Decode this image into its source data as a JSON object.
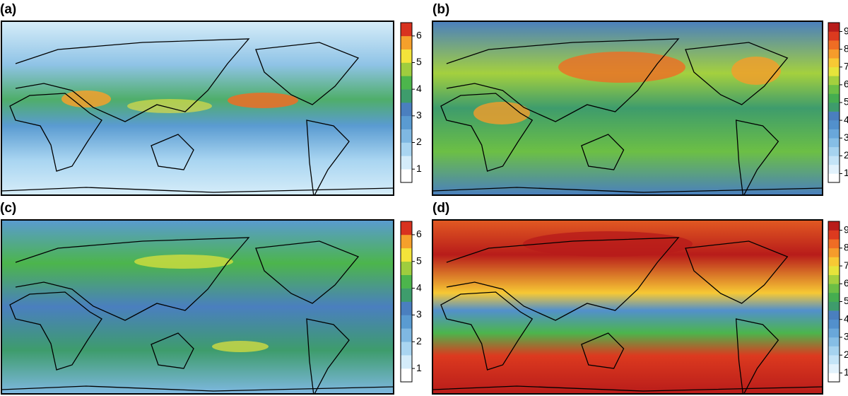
{
  "panels": [
    {
      "label": "(a)",
      "colorbar": {
        "lim": [
          0.5,
          6.5
        ],
        "ticks": [
          1,
          2,
          3,
          4,
          5,
          6
        ],
        "colors": [
          "#ffffff",
          "#d4ecfa",
          "#a9d5f1",
          "#7fb8e2",
          "#5a9bd1",
          "#4a7fbf",
          "#3e9c6c",
          "#4cb54c",
          "#9fcd3e",
          "#f4e43a",
          "#f5a02b",
          "#d8321f"
        ]
      }
    },
    {
      "label": "(b)",
      "colorbar": {
        "lim": [
          0.5,
          9.5
        ],
        "ticks": [
          1,
          2,
          3,
          4,
          5,
          6,
          7,
          8,
          9
        ],
        "colors": [
          "#ffffff",
          "#e2f2fc",
          "#c4e4f7",
          "#a6d3ef",
          "#86bee5",
          "#69a7da",
          "#5290cc",
          "#4a7fbf",
          "#3e9c6c",
          "#45ad50",
          "#6cbf45",
          "#a4d03e",
          "#e6e43b",
          "#f7c934",
          "#f59c2b",
          "#ef6d24",
          "#dc3a1f",
          "#b81c1a"
        ]
      }
    },
    {
      "label": "(c)",
      "colorbar": {
        "lim": [
          0.5,
          6.5
        ],
        "ticks": [
          1,
          2,
          3,
          4,
          5,
          6
        ],
        "colors": [
          "#ffffff",
          "#d4ecfa",
          "#a9d5f1",
          "#7fb8e2",
          "#5a9bd1",
          "#4a7fbf",
          "#3e9c6c",
          "#4cb54c",
          "#9fcd3e",
          "#f4e43a",
          "#f5a02b",
          "#d8321f"
        ]
      }
    },
    {
      "label": "(d)",
      "colorbar": {
        "lim": [
          0.5,
          9.5
        ],
        "ticks": [
          1,
          2,
          3,
          4,
          5,
          6,
          7,
          8,
          9
        ],
        "colors": [
          "#ffffff",
          "#e2f2fc",
          "#c4e4f7",
          "#a6d3ef",
          "#86bee5",
          "#69a7da",
          "#5290cc",
          "#4a7fbf",
          "#3e9c6c",
          "#45ad50",
          "#6cbf45",
          "#a4d03e",
          "#e6e43b",
          "#f7c934",
          "#f59c2b",
          "#ef6d24",
          "#dc3a1f",
          "#b81c1a"
        ]
      }
    }
  ]
}
